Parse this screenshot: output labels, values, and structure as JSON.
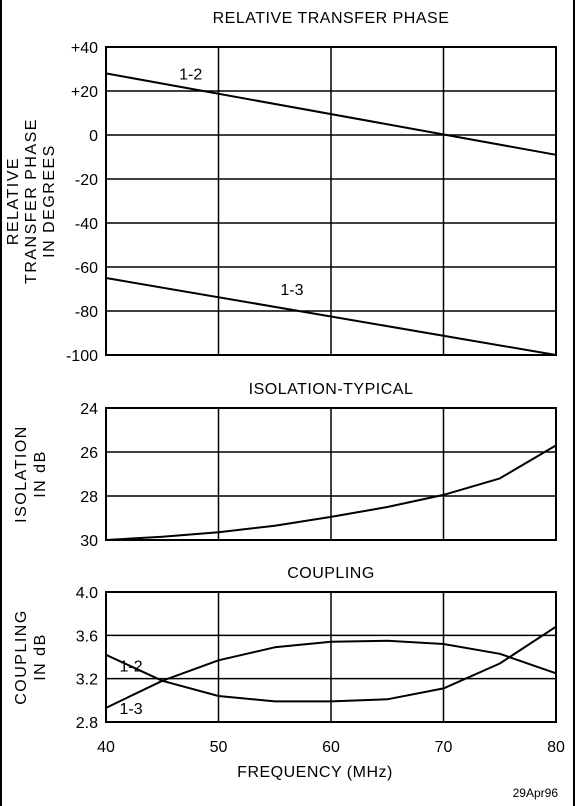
{
  "colors": {
    "ink": "#000000",
    "background": "#ffffff"
  },
  "x_axis_label": "FREQUENCY (MHz)",
  "date_stamp": "29Apr96",
  "chart_data": [
    {
      "type": "line",
      "title": "RELATIVE TRANSFER PHASE",
      "ylabel_lines": [
        "RELATIVE",
        "TRANSFER PHASE",
        "IN DEGREES"
      ],
      "xlim": [
        40,
        80
      ],
      "ylim": [
        -100,
        40
      ],
      "y_ticks": [
        40,
        20,
        0,
        -20,
        -40,
        -60,
        -80,
        -100
      ],
      "y_tick_labels": [
        "+40",
        "+20",
        "0",
        "-20",
        "-40",
        "-60",
        "-80",
        "-100"
      ],
      "x_ticks": [
        40,
        50,
        60,
        70,
        80
      ],
      "grid": true,
      "series": [
        {
          "name": "1-2",
          "x": [
            40,
            80
          ],
          "y": [
            28,
            -9
          ],
          "label_at": [
            46.5,
            28
          ]
        },
        {
          "name": "1-3",
          "x": [
            40,
            80
          ],
          "y": [
            -65,
            -100
          ],
          "label_at": [
            55.5,
            -70
          ]
        }
      ]
    },
    {
      "type": "line",
      "title": "ISOLATION-TYPICAL",
      "ylabel_lines": [
        "ISOLATION",
        "IN dB"
      ],
      "xlim": [
        40,
        80
      ],
      "ylim": [
        30,
        24
      ],
      "y_ticks": [
        24,
        26,
        28,
        30
      ],
      "y_tick_labels": [
        "24",
        "26",
        "28",
        "30"
      ],
      "x_ticks": [
        40,
        50,
        60,
        70,
        80
      ],
      "grid": true,
      "series": [
        {
          "name": "",
          "x": [
            40,
            45,
            50,
            55,
            60,
            65,
            70,
            75,
            80
          ],
          "y": [
            30.0,
            29.85,
            29.65,
            29.35,
            28.95,
            28.5,
            27.95,
            27.2,
            25.7
          ]
        }
      ]
    },
    {
      "type": "line",
      "title": "COUPLING",
      "ylabel_lines": [
        "COUPLING",
        "IN dB"
      ],
      "xlim": [
        40,
        80
      ],
      "ylim": [
        2.8,
        4.0
      ],
      "y_ticks": [
        4.0,
        3.6,
        3.2,
        2.8
      ],
      "y_tick_labels": [
        "4.0",
        "3.6",
        "3.2",
        "2.8"
      ],
      "x_ticks": [
        40,
        50,
        60,
        70,
        80
      ],
      "x_tick_labels": [
        "40",
        "50",
        "60",
        "70",
        "80"
      ],
      "grid": true,
      "series": [
        {
          "name": "1-2",
          "x": [
            40,
            45,
            50,
            55,
            60,
            65,
            70,
            75,
            80
          ],
          "y": [
            2.93,
            3.18,
            3.37,
            3.49,
            3.54,
            3.55,
            3.52,
            3.43,
            3.25
          ],
          "label_at": [
            41.2,
            3.32
          ]
        },
        {
          "name": "1-3",
          "x": [
            40,
            45,
            50,
            55,
            60,
            65,
            70,
            75,
            80
          ],
          "y": [
            3.42,
            3.18,
            3.04,
            2.99,
            2.99,
            3.01,
            3.11,
            3.34,
            3.68
          ],
          "label_at": [
            41.2,
            2.93
          ]
        }
      ]
    }
  ]
}
